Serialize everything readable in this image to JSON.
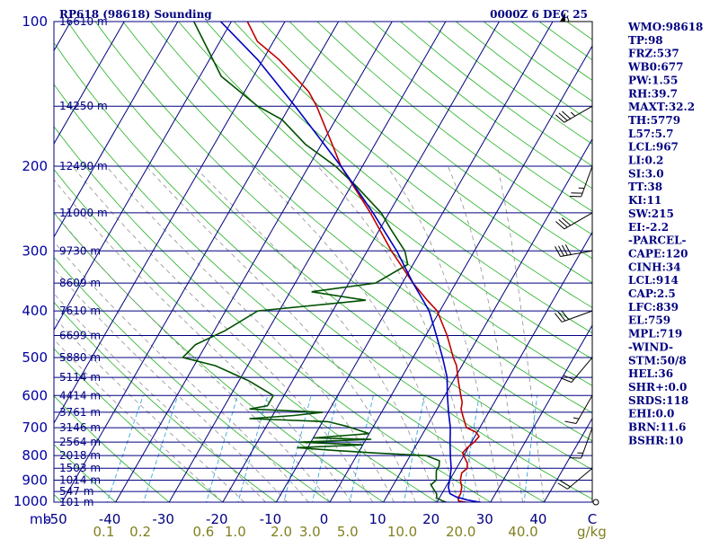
{
  "header": {
    "station": "RP618 (98618) Sounding",
    "time": "0000Z  6 DEC 25"
  },
  "colors": {
    "frame": "#000080",
    "isobar": "#000080",
    "isotherm": "#000080",
    "dry_adiabat": "#22b022",
    "mixing_ratio": "#33aadd",
    "moist_adiabat": "#909090",
    "temperature": "#c00000",
    "dewpoint": "#005000",
    "parcel": "#0000c0"
  },
  "chart_data": {
    "type": "skew-t",
    "title": "RP618 (98618) Sounding",
    "valid_time": "0000Z  6 DEC 25",
    "pressure_unit": "mb",
    "pressure_levels": [
      100,
      200,
      300,
      400,
      500,
      600,
      700,
      800,
      900,
      1000
    ],
    "pressure_range": [
      100,
      1000
    ],
    "temperature_ticks": [
      "-50",
      "-40",
      "-30",
      "-20",
      "-10",
      "0",
      "10",
      "20",
      "30",
      "40",
      "C"
    ],
    "temperature_tick_values": [
      -50,
      -40,
      -30,
      -20,
      -10,
      0,
      10,
      20,
      30,
      40
    ],
    "mixing_ratio_unit": "g/kg",
    "mixing_ratio_ticks": [
      "0.1",
      "0.2",
      "0.6",
      "1.0",
      "2.0",
      "3.0",
      "5.0",
      "10.0",
      "20.0",
      "40.0"
    ],
    "height_labels": [
      {
        "p": 100,
        "label": "16610 m"
      },
      {
        "p": 150,
        "label": "14250 m"
      },
      {
        "p": 200,
        "label": "12490 m"
      },
      {
        "p": 250,
        "label": "11000 m"
      },
      {
        "p": 300,
        "label": "9730 m"
      },
      {
        "p": 350,
        "label": "8609 m"
      },
      {
        "p": 400,
        "label": "7610 m"
      },
      {
        "p": 450,
        "label": "6699 m"
      },
      {
        "p": 500,
        "label": "5880 m"
      },
      {
        "p": 550,
        "label": "5114 m"
      },
      {
        "p": 600,
        "label": "4414 m"
      },
      {
        "p": 650,
        "label": "3761 m"
      },
      {
        "p": 700,
        "label": "3146 m"
      },
      {
        "p": 750,
        "label": "2564 m"
      },
      {
        "p": 800,
        "label": "2018 m"
      },
      {
        "p": 850,
        "label": "1503 m"
      },
      {
        "p": 900,
        "label": "1014 m"
      },
      {
        "p": 950,
        "label": "547 m"
      },
      {
        "p": 1000,
        "label": "101 m"
      }
    ],
    "series": [
      {
        "name": "Temperature",
        "color": "#c00000",
        "points": [
          [
            1006,
            27
          ],
          [
            995,
            24
          ],
          [
            980,
            23.5
          ],
          [
            960,
            23.5
          ],
          [
            930,
            23
          ],
          [
            900,
            22
          ],
          [
            870,
            21.5
          ],
          [
            850,
            22
          ],
          [
            830,
            21.5
          ],
          [
            810,
            20.5
          ],
          [
            790,
            19.5
          ],
          [
            770,
            19.8
          ],
          [
            750,
            20.5
          ],
          [
            730,
            20.8
          ],
          [
            715,
            19.8
          ],
          [
            700,
            17.5
          ],
          [
            680,
            16.5
          ],
          [
            660,
            15.5
          ],
          [
            640,
            14.5
          ],
          [
            620,
            14
          ],
          [
            600,
            13
          ],
          [
            560,
            11
          ],
          [
            520,
            9
          ],
          [
            500,
            7.5
          ],
          [
            450,
            4
          ],
          [
            400,
            -0.5
          ],
          [
            380,
            -3.5
          ],
          [
            350,
            -8
          ],
          [
            300,
            -15.5
          ],
          [
            250,
            -23.5
          ],
          [
            200,
            -34
          ],
          [
            180,
            -38
          ],
          [
            150,
            -45
          ],
          [
            140,
            -48
          ],
          [
            120,
            -57
          ],
          [
            110,
            -63
          ],
          [
            100,
            -67
          ]
        ]
      },
      {
        "name": "Dewpoint",
        "color": "#005000",
        "points": [
          [
            1006,
            22.5
          ],
          [
            995,
            21
          ],
          [
            980,
            19.5
          ],
          [
            960,
            19
          ],
          [
            940,
            18
          ],
          [
            920,
            17
          ],
          [
            900,
            17.5
          ],
          [
            880,
            17
          ],
          [
            860,
            16.5
          ],
          [
            840,
            16.5
          ],
          [
            820,
            16
          ],
          [
            800,
            13
          ],
          [
            790,
            3
          ],
          [
            780,
            -5
          ],
          [
            770,
            -12
          ],
          [
            760,
            0
          ],
          [
            750,
            -12
          ],
          [
            740,
            1
          ],
          [
            735,
            -10
          ],
          [
            720,
            0
          ],
          [
            705,
            -3
          ],
          [
            695,
            -5
          ],
          [
            680,
            -9
          ],
          [
            670,
            -24
          ],
          [
            660,
            -16
          ],
          [
            650,
            -11
          ],
          [
            640,
            -25
          ],
          [
            630,
            -22
          ],
          [
            600,
            -22
          ],
          [
            560,
            -28
          ],
          [
            520,
            -36
          ],
          [
            500,
            -43
          ],
          [
            470,
            -42
          ],
          [
            440,
            -38
          ],
          [
            400,
            -34
          ],
          [
            380,
            -15
          ],
          [
            365,
            -26
          ],
          [
            350,
            -15
          ],
          [
            320,
            -11
          ],
          [
            300,
            -13
          ],
          [
            270,
            -18
          ],
          [
            250,
            -21.5
          ],
          [
            220,
            -29
          ],
          [
            200,
            -35
          ],
          [
            180,
            -43
          ],
          [
            160,
            -50
          ],
          [
            150,
            -56
          ],
          [
            130,
            -66
          ],
          [
            110,
            -73
          ],
          [
            100,
            -77
          ]
        ]
      },
      {
        "name": "Parcel",
        "color": "#0000c0",
        "points": [
          [
            1006,
            30
          ],
          [
            1000,
            28
          ],
          [
            990,
            25.5
          ],
          [
            975,
            23
          ],
          [
            960,
            21.5
          ],
          [
            930,
            20.5
          ],
          [
            900,
            20
          ],
          [
            850,
            19
          ],
          [
            800,
            17.5
          ],
          [
            750,
            16
          ],
          [
            700,
            14.5
          ],
          [
            650,
            12.5
          ],
          [
            600,
            10.5
          ],
          [
            550,
            8.5
          ],
          [
            500,
            5.5
          ],
          [
            450,
            2
          ],
          [
            400,
            -2
          ],
          [
            350,
            -8
          ],
          [
            300,
            -14.5
          ],
          [
            250,
            -23
          ],
          [
            200,
            -34
          ],
          [
            150,
            -49
          ],
          [
            120,
            -61
          ],
          [
            100,
            -72
          ]
        ]
      }
    ],
    "wind_barbs": [
      {
        "p": 1000,
        "dir": 90,
        "spd": 0
      },
      {
        "p": 850,
        "dir": 230,
        "spd": 20
      },
      {
        "p": 700,
        "dir": 200,
        "spd": 15
      },
      {
        "p": 600,
        "dir": 210,
        "spd": 15
      },
      {
        "p": 500,
        "dir": 220,
        "spd": 20
      },
      {
        "p": 400,
        "dir": 250,
        "spd": 30
      },
      {
        "p": 300,
        "dir": 260,
        "spd": 40
      },
      {
        "p": 250,
        "dir": 240,
        "spd": 30
      },
      {
        "p": 200,
        "dir": 200,
        "spd": 25
      },
      {
        "p": 150,
        "dir": 240,
        "spd": 35
      },
      {
        "p": 100,
        "dir": 270,
        "spd": 55
      }
    ]
  },
  "indices": [
    "WMO:98618",
    "TP:98",
    "FRZ:537",
    "WB0:677",
    "PW:1.55",
    "RH:39.7",
    "MAXT:32.2",
    "TH:5779",
    "L57:5.7",
    "LCL:967",
    "LI:0.2",
    "SI:3.0",
    "TT:38",
    "KI:11",
    "SW:215",
    "EI:-2.2",
    "-PARCEL-",
    "CAPE:120",
    "CINH:34",
    "LCL:914",
    "CAP:2.5",
    "LFC:839",
    "EL:759",
    "MPL:719",
    "-WIND-",
    "STM:50/8",
    "HEL:36",
    "SHR+:0.0",
    "SRDS:118",
    "EHI:0.0",
    "BRN:11.6",
    "BSHR:10"
  ]
}
